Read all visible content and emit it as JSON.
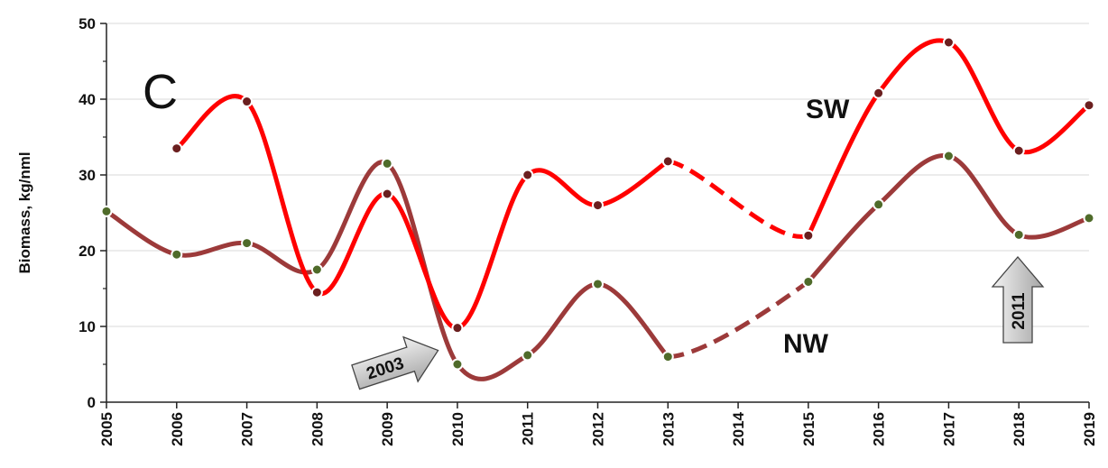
{
  "panel_letter": "C",
  "arrows": [
    {
      "label": "2003",
      "color": "#bdbdbd"
    },
    {
      "label": "2011",
      "color": "#bdbdbd"
    }
  ],
  "colors": {
    "SW": "#ff0000",
    "NW": "#9c3a3a",
    "SW_marker": "#6b1f1f",
    "NW_marker": "#4f6b2a"
  },
  "chart_data": {
    "type": "line",
    "title": "",
    "xlabel": "",
    "ylabel": "Biomass, kg/nml",
    "x": [
      2005,
      2006,
      2007,
      2008,
      2009,
      2010,
      2011,
      2012,
      2013,
      2014,
      2015,
      2016,
      2017,
      2018,
      2019
    ],
    "xlim": [
      2005,
      2019
    ],
    "ylim": [
      0,
      50
    ],
    "yticks": [
      0,
      10,
      20,
      30,
      40,
      50
    ],
    "grid": true,
    "legend": "none",
    "series": [
      {
        "name": "SW",
        "values": [
          null,
          33.5,
          39.7,
          14.5,
          27.5,
          9.8,
          30.0,
          26.0,
          31.8,
          null,
          22.0,
          40.8,
          47.5,
          33.2,
          39.2
        ],
        "dashed_gap": [
          2013,
          2015
        ]
      },
      {
        "name": "NW",
        "values": [
          25.2,
          19.5,
          21.0,
          17.5,
          31.5,
          5.0,
          6.2,
          15.6,
          6.0,
          null,
          15.9,
          26.1,
          32.5,
          22.1,
          24.3
        ],
        "dashed_gap": [
          2013,
          2015
        ]
      }
    ]
  }
}
